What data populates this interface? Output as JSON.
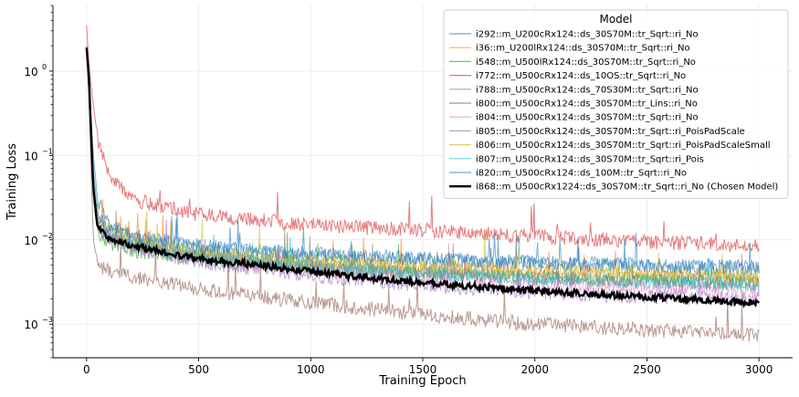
{
  "chart_data": {
    "type": "line",
    "title": "",
    "xlabel": "Training Epoch",
    "ylabel": "Training Loss",
    "yscale": "log",
    "xlim": [
      -150,
      3150
    ],
    "ylim": [
      0.0004,
      6.0
    ],
    "x_ticks": [
      0,
      500,
      1000,
      1500,
      2000,
      2500,
      3000
    ],
    "x_tick_labels": [
      "0",
      "500",
      "1000",
      "1500",
      "2000",
      "2500",
      "3000"
    ],
    "y_ticks": [
      0.001,
      0.01,
      0.1,
      1.0
    ],
    "y_tick_labels": [
      "10",
      "10",
      "10",
      "10"
    ],
    "y_tick_exponents": [
      "−3",
      "−2",
      "−1",
      "0"
    ],
    "grid": true,
    "legend": {
      "title": "Model",
      "placement": "top-right"
    },
    "series": [
      {
        "name": "i292::m_U200cRx124::ds_30S70M::tr_Sqrt::ri_No",
        "color": "#1f77b4",
        "x": [
          0,
          10,
          30,
          50,
          100,
          200,
          500,
          1000,
          1500,
          2000,
          2500,
          3000
        ],
        "values": [
          2.0,
          0.9,
          0.1,
          0.03,
          0.015,
          0.011,
          0.008,
          0.0065,
          0.0058,
          0.0052,
          0.0047,
          0.0045
        ]
      },
      {
        "name": "i36::m_U200lRx124::ds_30S70M::tr_Sqrt::ri_No",
        "color": "#ff7f0e",
        "x": [
          0,
          10,
          30,
          50,
          100,
          200,
          500,
          1000,
          1500,
          2000,
          2500,
          3000
        ],
        "values": [
          1.8,
          0.8,
          0.05,
          0.016,
          0.012,
          0.0095,
          0.0068,
          0.0052,
          0.0045,
          0.0041,
          0.0038,
          0.0036
        ]
      },
      {
        "name": "i548::m_U500lRx124::ds_30S70M::tr_Sqrt::ri_No",
        "color": "#2ca02c",
        "x": [
          0,
          10,
          30,
          50,
          100,
          200,
          500,
          1000,
          1500,
          2000,
          2500,
          3000
        ],
        "values": [
          1.6,
          0.7,
          0.03,
          0.012,
          0.009,
          0.0075,
          0.0058,
          0.0046,
          0.004,
          0.0036,
          0.0033,
          0.0031
        ]
      },
      {
        "name": "i772::m_U500cRx124::ds_10OS::tr_Sqrt::ri_No",
        "color": "#d62728",
        "x": [
          0,
          10,
          30,
          50,
          100,
          200,
          500,
          1000,
          1500,
          2000,
          2500,
          3000
        ],
        "values": [
          3.5,
          1.2,
          0.4,
          0.15,
          0.06,
          0.03,
          0.02,
          0.015,
          0.013,
          0.011,
          0.0095,
          0.0085
        ]
      },
      {
        "name": "i788::m_U500cRx124::ds_70S30M::tr_Sqrt::ri_No",
        "color": "#9467bd",
        "x": [
          0,
          10,
          30,
          50,
          100,
          200,
          500,
          1000,
          1500,
          2000,
          2500,
          3000
        ],
        "values": [
          1.7,
          0.8,
          0.04,
          0.014,
          0.01,
          0.008,
          0.0055,
          0.0038,
          0.0029,
          0.0024,
          0.0021,
          0.002
        ]
      },
      {
        "name": "i800::m_U500cRx124::ds_30S70M::tr_Lins::ri_No",
        "color": "#8c564b",
        "x": [
          0,
          10,
          30,
          50,
          100,
          200,
          500,
          1000,
          1500,
          2000,
          2500,
          3000
        ],
        "values": [
          1.5,
          0.5,
          0.01,
          0.005,
          0.0042,
          0.0036,
          0.0026,
          0.0018,
          0.0013,
          0.001,
          0.00085,
          0.00075
        ]
      },
      {
        "name": "i804::m_U500cRx124::ds_30S70M::tr_Sqrt::ri_No",
        "color": "#e377c2",
        "x": [
          0,
          10,
          30,
          50,
          100,
          200,
          500,
          1000,
          1500,
          2000,
          2500,
          3000
        ],
        "values": [
          1.9,
          0.85,
          0.05,
          0.015,
          0.011,
          0.0088,
          0.0062,
          0.0045,
          0.0036,
          0.003,
          0.0027,
          0.0025
        ]
      },
      {
        "name": "i805::m_U500cRx124::ds_30S70M::tr_Sqrt::ri_PoisPadScale",
        "color": "#7f7f7f",
        "x": [
          0,
          10,
          30,
          50,
          100,
          200,
          500,
          1000,
          1500,
          2000,
          2500,
          3000
        ],
        "values": [
          1.8,
          0.8,
          0.05,
          0.016,
          0.012,
          0.0092,
          0.0065,
          0.0049,
          0.0041,
          0.0036,
          0.0033,
          0.0031
        ]
      },
      {
        "name": "i806::m_U500cRx124::ds_30S70M::tr_Sqrt::ri_PoisPadScaleSmall",
        "color": "#bcbd22",
        "x": [
          0,
          10,
          30,
          50,
          100,
          200,
          500,
          1000,
          1500,
          2000,
          2500,
          3000
        ],
        "values": [
          1.8,
          0.85,
          0.05,
          0.017,
          0.013,
          0.01,
          0.0075,
          0.0058,
          0.005,
          0.0044,
          0.004,
          0.0037
        ]
      },
      {
        "name": "i807::m_U500cRx124::ds_30S70M::tr_Sqrt::ri_Pois",
        "color": "#17becf",
        "x": [
          0,
          10,
          30,
          50,
          100,
          200,
          500,
          1000,
          1500,
          2000,
          2500,
          3000
        ],
        "values": [
          1.7,
          0.8,
          0.05,
          0.015,
          0.011,
          0.0088,
          0.0064,
          0.0048,
          0.004,
          0.0035,
          0.0032,
          0.003
        ]
      },
      {
        "name": "i820::m_U500cRx124::ds_100M::tr_Sqrt::ri_No",
        "color": "#1f77b4",
        "x": [
          0,
          10,
          30,
          50,
          100,
          200,
          500,
          1000,
          1500,
          2000,
          2500,
          3000
        ],
        "values": [
          1.9,
          0.9,
          0.07,
          0.02,
          0.014,
          0.011,
          0.0085,
          0.0068,
          0.006,
          0.0054,
          0.005,
          0.0047
        ]
      },
      {
        "name": "i868::m_U500cRx1224::ds_30S70M::tr_Sqrt::ri_No (Chosen Model)",
        "color": "#000000",
        "x": [
          0,
          10,
          30,
          50,
          100,
          200,
          500,
          1000,
          1500,
          2000,
          2500,
          3000
        ],
        "values": [
          1.9,
          0.9,
          0.04,
          0.014,
          0.0105,
          0.0085,
          0.006,
          0.0042,
          0.0031,
          0.0025,
          0.0021,
          0.0018
        ]
      }
    ]
  }
}
